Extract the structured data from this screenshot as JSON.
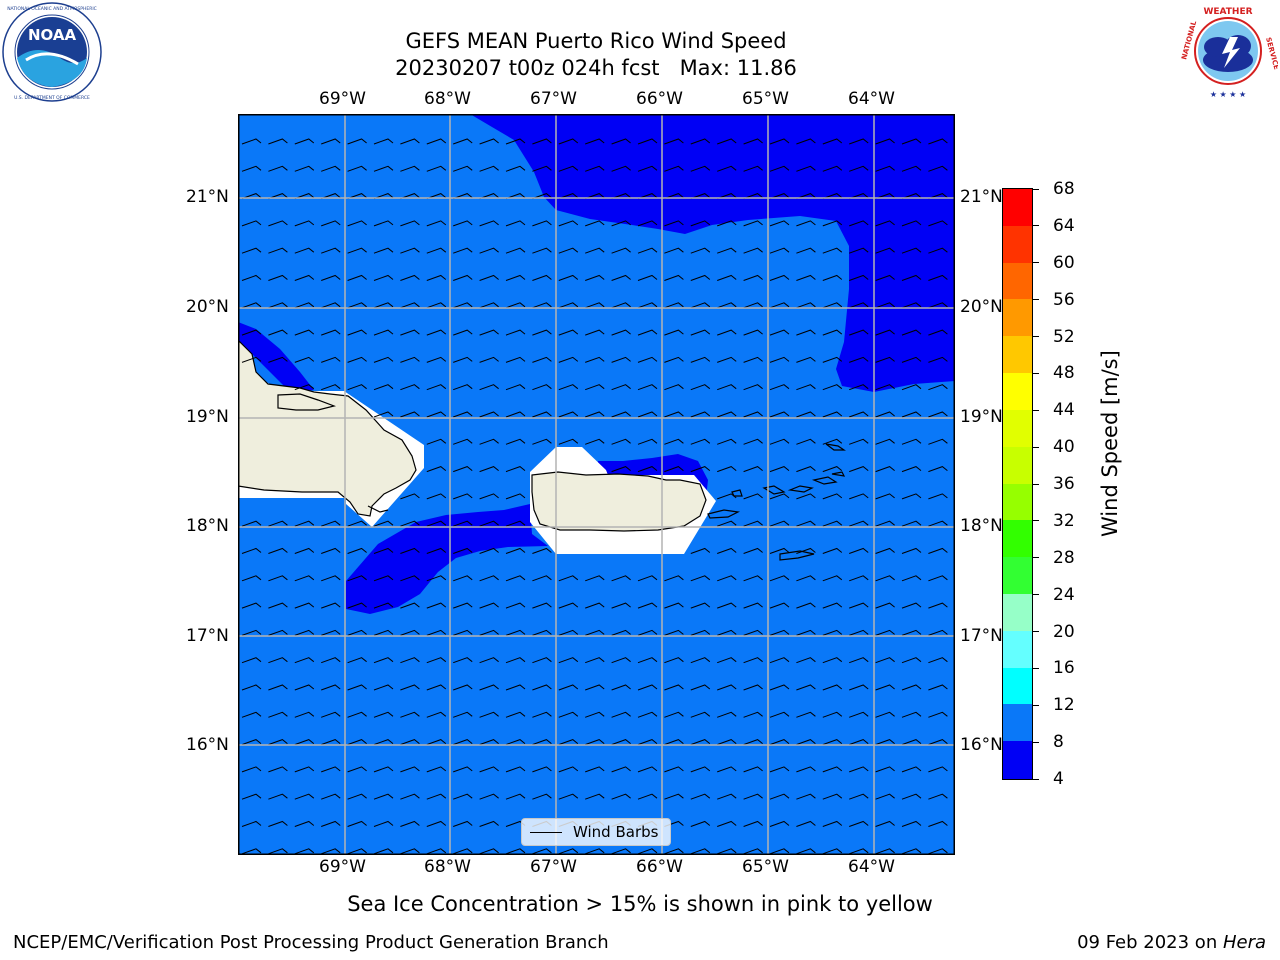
{
  "title": {
    "line1": "GEFS MEAN Puerto Rico Wind Speed",
    "line2": "20230207 t00z 024h fcst   Max: 11.86"
  },
  "logos": {
    "left": {
      "name": "noaa-logo",
      "text": "NOAA",
      "ring_text": "NATIONAL OCEANIC AND ATMOSPHERIC ADMINISTRATION · U.S. DEPARTMENT OF COMMERCE"
    },
    "right": {
      "name": "nws-logo",
      "ring_text": "NATIONAL WEATHER SERVICE"
    }
  },
  "map": {
    "lon_labels": [
      "69°W",
      "68°W",
      "67°W",
      "66°W",
      "65°W",
      "64°W"
    ],
    "lat_labels": [
      "21°N",
      "20°N",
      "19°N",
      "18°N",
      "17°N",
      "16°N"
    ],
    "legend_label": "Wind Barbs",
    "colors": {
      "ocean_8_12": "#0a78f8",
      "ocean_4_8": "#0000f5",
      "land": "#efeedd",
      "grid": "#b4b4b4"
    }
  },
  "colorbar": {
    "label": "Wind Speed [m/s]",
    "ticks": [
      "68",
      "64",
      "60",
      "56",
      "52",
      "48",
      "44",
      "40",
      "36",
      "32",
      "28",
      "24",
      "20",
      "16",
      "12",
      "8",
      "4"
    ],
    "colors": [
      "#ff0000",
      "#ff3300",
      "#ff6600",
      "#ff9900",
      "#ffc800",
      "#ffff00",
      "#e1ff00",
      "#c8ff00",
      "#96ff00",
      "#32ff00",
      "#32ff32",
      "#96ffc8",
      "#64ffff",
      "#00ffff",
      "#0a78f8",
      "#0000f5"
    ]
  },
  "caption": "Sea Ice Concentration > 15% is shown in pink to yellow",
  "footer": {
    "left": "NCEP/EMC/Verification Post Processing Product Generation Branch",
    "right_prefix": "09 Feb 2023 on ",
    "right_machine": "Hera"
  }
}
